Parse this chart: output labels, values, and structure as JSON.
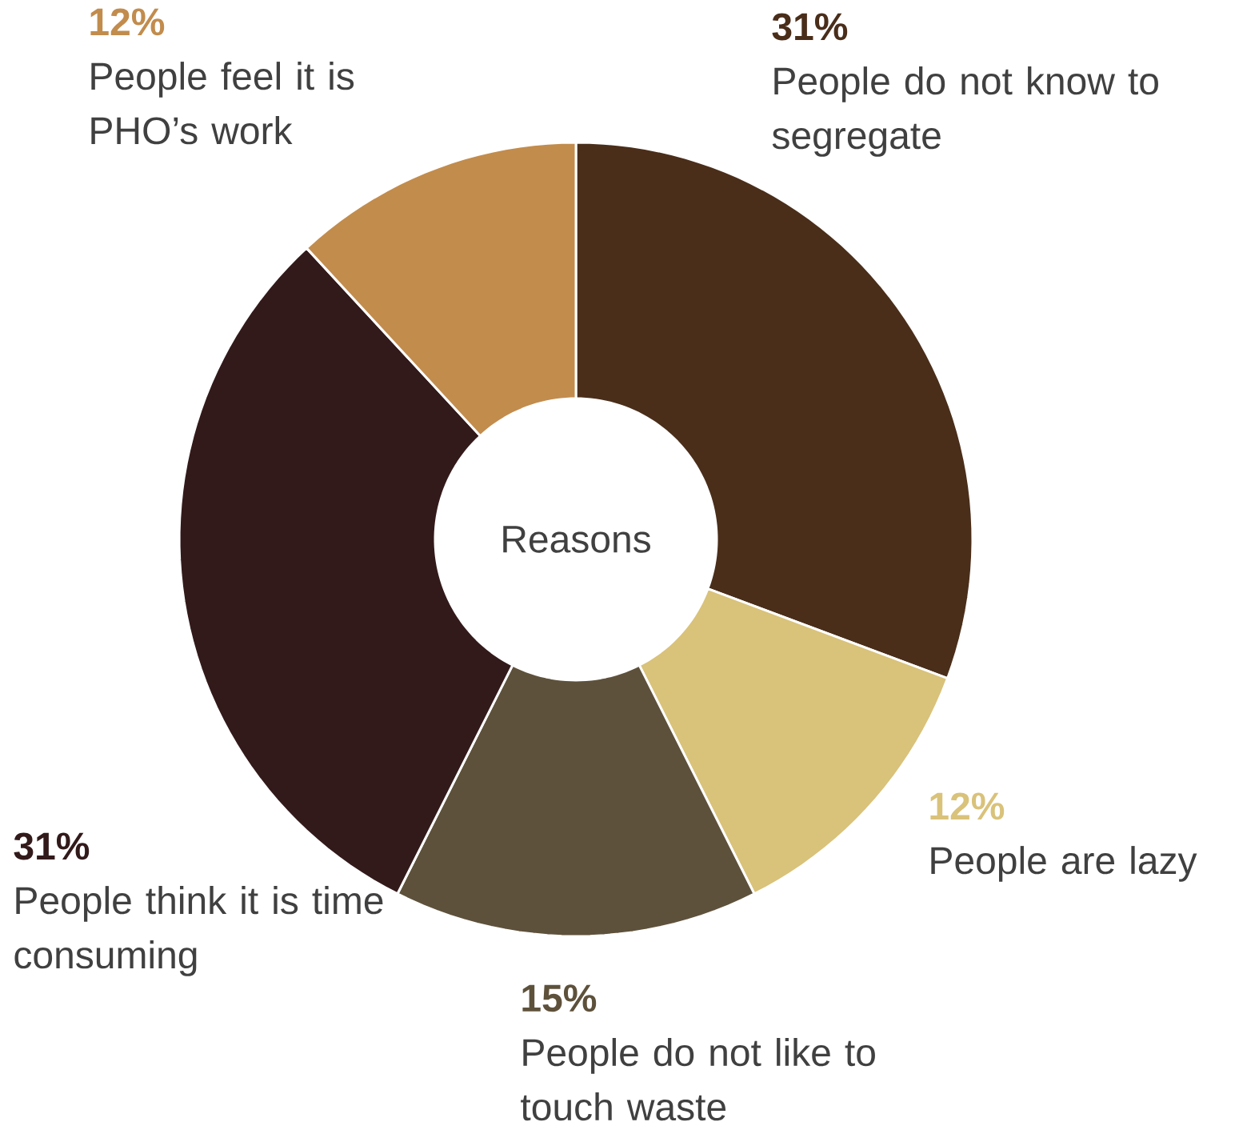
{
  "chart_data": {
    "type": "donut",
    "title": "Reasons",
    "categories": [
      "People do not know to segregate",
      "People are lazy",
      "People do not like to touch waste",
      "People think it is time consuming",
      "People feel it is PHO’s work"
    ],
    "values": [
      31,
      12,
      15,
      31,
      12
    ],
    "value_labels": [
      "31%",
      "12%",
      "15%",
      "31%",
      "12%"
    ],
    "colors": [
      "#4a2e1a",
      "#d9c27a",
      "#5e513b",
      "#331a1a",
      "#c28c4d"
    ]
  }
}
